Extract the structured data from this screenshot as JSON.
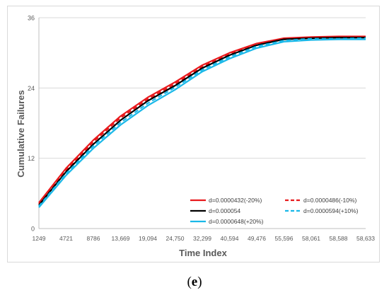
{
  "panel_label": {
    "open": "(",
    "letter": "e",
    "close": ")"
  },
  "chart_data": {
    "type": "line",
    "title": "",
    "xlabel": "Time Index",
    "ylabel": "Cumulative Failures",
    "categories": [
      "1249",
      "4721",
      "8786",
      "13,669",
      "19,094",
      "24,750",
      "32,299",
      "40,594",
      "49,476",
      "55,596",
      "58,061",
      "58,588",
      "58,633"
    ],
    "ylim": [
      0,
      36
    ],
    "yticks": [
      0,
      12,
      24,
      36
    ],
    "grid": {
      "horizontal": true,
      "vertical": false
    },
    "legend": "bottom-right, inside plot",
    "series": [
      {
        "name": "d=0.0000432(-20%)",
        "color": "#e8191c",
        "dash": "solid",
        "values": [
          4.4,
          10.3,
          15.1,
          19.2,
          22.4,
          25.0,
          27.9,
          30.0,
          31.6,
          32.5,
          32.7,
          32.8,
          32.8
        ]
      },
      {
        "name": "d=0.0000486(-10%)",
        "color": "#e8191c",
        "dash": "dashed",
        "values": [
          4.2,
          10.0,
          14.8,
          18.9,
          22.1,
          24.7,
          27.6,
          29.8,
          31.4,
          32.4,
          32.6,
          32.7,
          32.7
        ]
      },
      {
        "name": "d=0.000054",
        "color": "#000000",
        "dash": "solid",
        "values": [
          4.0,
          9.7,
          14.4,
          18.5,
          21.8,
          24.4,
          27.4,
          29.6,
          31.3,
          32.3,
          32.5,
          32.6,
          32.6
        ]
      },
      {
        "name": "d=0.0000594(+10%)",
        "color": "#1ab8e8",
        "dash": "dashed",
        "values": [
          3.8,
          9.4,
          14.1,
          18.1,
          21.4,
          24.1,
          27.1,
          29.3,
          31.1,
          32.1,
          32.4,
          32.4,
          32.5
        ]
      },
      {
        "name": "d=0.0000648(+20%)",
        "color": "#1ab8e8",
        "dash": "solid",
        "values": [
          3.6,
          9.1,
          13.7,
          17.7,
          21.0,
          23.7,
          26.8,
          29.0,
          30.8,
          31.9,
          32.2,
          32.3,
          32.3
        ]
      }
    ]
  }
}
